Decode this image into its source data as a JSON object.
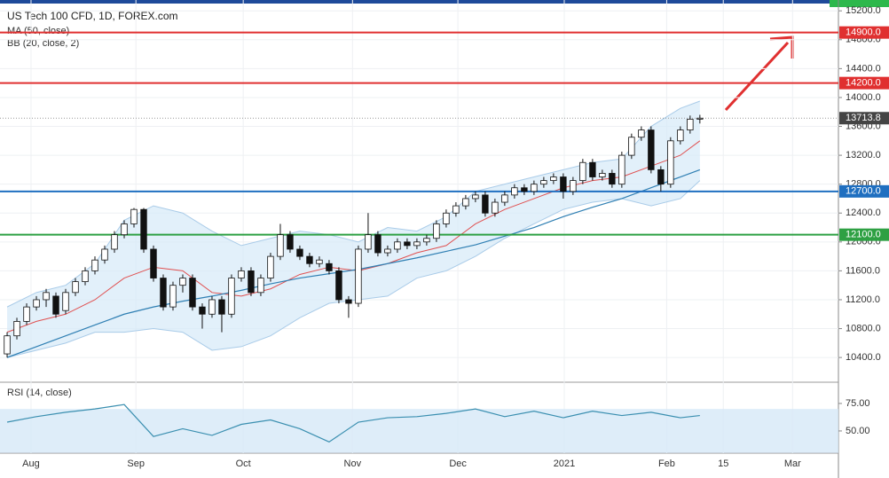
{
  "chart_data": {
    "type": "candlestick",
    "title": "US Tech 100 CFD, 1D, FOREX.com",
    "xlim": [
      -0.73,
      85.2
    ],
    "xticks": [
      {
        "value": 2.45,
        "label": "Aug"
      },
      {
        "value": 13.2,
        "label": "Sep"
      },
      {
        "value": 24.2,
        "label": "Oct"
      },
      {
        "value": 35.4,
        "label": "Nov"
      },
      {
        "value": 46.2,
        "label": "Dec"
      },
      {
        "value": 57.1,
        "label": "2021"
      },
      {
        "value": 67.6,
        "label": "Feb"
      },
      {
        "value": 73.4,
        "label": "15"
      },
      {
        "value": 80.5,
        "label": "Mar"
      }
    ],
    "ylim": [
      10070,
      15350
    ],
    "yticks": [
      {
        "value": 15200,
        "label": "15200.0"
      },
      {
        "value": 14800,
        "label": "14800.0"
      },
      {
        "value": 14400,
        "label": "14400.0"
      },
      {
        "value": 14000,
        "label": "14000.0"
      },
      {
        "value": 13600,
        "label": "13600.0"
      },
      {
        "value": 13200,
        "label": "13200.0"
      },
      {
        "value": 12800,
        "label": "12800.0"
      },
      {
        "value": 12400,
        "label": "12400.0"
      },
      {
        "value": 12000,
        "label": "12000.0"
      },
      {
        "value": 11600,
        "label": "11600.0"
      },
      {
        "value": 11200,
        "label": "11200.0"
      },
      {
        "value": 10800,
        "label": "10800.0"
      },
      {
        "value": 10400,
        "label": "10400.0"
      }
    ],
    "up_color": "#ffffff",
    "down_color": "#111111",
    "candles": [
      [
        10450,
        10750,
        10400,
        10700
      ],
      [
        10700,
        10950,
        10650,
        10900
      ],
      [
        10900,
        11150,
        10850,
        11100
      ],
      [
        11100,
        11250,
        11050,
        11200
      ],
      [
        11200,
        11350,
        11100,
        11300
      ],
      [
        11250,
        11300,
        10950,
        11000
      ],
      [
        11050,
        11350,
        11000,
        11300
      ],
      [
        11300,
        11500,
        11250,
        11450
      ],
      [
        11450,
        11650,
        11400,
        11600
      ],
      [
        11600,
        11800,
        11550,
        11750
      ],
      [
        11750,
        11950,
        11700,
        11900
      ],
      [
        11900,
        12150,
        11850,
        12100
      ],
      [
        12100,
        12300,
        12050,
        12250
      ],
      [
        12250,
        12470,
        12200,
        12450
      ],
      [
        12450,
        12470,
        11850,
        11900
      ],
      [
        11900,
        11950,
        11450,
        11500
      ],
      [
        11500,
        11550,
        11050,
        11100
      ],
      [
        11100,
        11450,
        11050,
        11400
      ],
      [
        11400,
        11550,
        11300,
        11500
      ],
      [
        11500,
        11550,
        11050,
        11100
      ],
      [
        11100,
        11150,
        10800,
        11000
      ],
      [
        11000,
        11250,
        10950,
        11200
      ],
      [
        11200,
        11250,
        10750,
        11000
      ],
      [
        11000,
        11550,
        10950,
        11500
      ],
      [
        11500,
        11650,
        11450,
        11600
      ],
      [
        11600,
        11650,
        11250,
        11300
      ],
      [
        11300,
        11550,
        11250,
        11500
      ],
      [
        11500,
        11850,
        11450,
        11800
      ],
      [
        11800,
        12250,
        11750,
        12100
      ],
      [
        12100,
        12150,
        11850,
        11900
      ],
      [
        11900,
        11950,
        11750,
        11800
      ],
      [
        11800,
        11850,
        11650,
        11700
      ],
      [
        11700,
        11800,
        11650,
        11750
      ],
      [
        11700,
        11750,
        11550,
        11600
      ],
      [
        11600,
        11650,
        11150,
        11200
      ],
      [
        11200,
        11250,
        10950,
        11150
      ],
      [
        11150,
        11950,
        11100,
        11900
      ],
      [
        11900,
        12400,
        11850,
        12100
      ],
      [
        12100,
        12150,
        11800,
        11850
      ],
      [
        11850,
        11950,
        11800,
        11900
      ],
      [
        11900,
        12050,
        11850,
        12000
      ],
      [
        12000,
        12050,
        11900,
        11950
      ],
      [
        11950,
        12050,
        11900,
        12000
      ],
      [
        12000,
        12100,
        11950,
        12050
      ],
      [
        12050,
        12300,
        12000,
        12250
      ],
      [
        12250,
        12450,
        12200,
        12400
      ],
      [
        12400,
        12550,
        12350,
        12500
      ],
      [
        12500,
        12650,
        12450,
        12600
      ],
      [
        12600,
        12700,
        12550,
        12650
      ],
      [
        12650,
        12700,
        12350,
        12400
      ],
      [
        12400,
        12600,
        12350,
        12550
      ],
      [
        12550,
        12700,
        12500,
        12650
      ],
      [
        12650,
        12800,
        12600,
        12750
      ],
      [
        12750,
        12800,
        12650,
        12700
      ],
      [
        12700,
        12850,
        12650,
        12800
      ],
      [
        12800,
        12900,
        12750,
        12850
      ],
      [
        12850,
        12950,
        12800,
        12900
      ],
      [
        12900,
        12950,
        12600,
        12700
      ],
      [
        12700,
        12900,
        12650,
        12850
      ],
      [
        12850,
        13150,
        12800,
        13100
      ],
      [
        13100,
        13150,
        12850,
        12900
      ],
      [
        12900,
        13000,
        12850,
        12950
      ],
      [
        12950,
        13000,
        12750,
        12800
      ],
      [
        12800,
        13250,
        12750,
        13200
      ],
      [
        13200,
        13500,
        13150,
        13450
      ],
      [
        13450,
        13600,
        13400,
        13550
      ],
      [
        13550,
        13600,
        12950,
        13000
      ],
      [
        13000,
        13050,
        12700,
        12800
      ],
      [
        12800,
        13450,
        12750,
        13400
      ],
      [
        13400,
        13600,
        13350,
        13550
      ],
      [
        13550,
        13750,
        13500,
        13700
      ],
      [
        13700,
        13760,
        13640,
        13714
      ]
    ],
    "indicators": [
      {
        "label": "MA (50, close)",
        "color": "#2f7fb3"
      },
      {
        "label": "BB (20, close, 2)",
        "color": "#e05050",
        "band_color": "#d6e9f8"
      }
    ],
    "line_x": [
      0,
      3,
      6,
      9,
      12,
      15,
      18,
      21,
      24,
      27,
      30,
      33,
      36,
      39,
      42,
      45,
      48,
      51,
      54,
      57,
      60,
      63,
      66,
      69,
      71
    ],
    "ma": [
      10400,
      10550,
      10700,
      10850,
      11000,
      11100,
      11180,
      11250,
      11330,
      11420,
      11500,
      11560,
      11620,
      11700,
      11780,
      11870,
      11960,
      12080,
      12200,
      12350,
      12480,
      12600,
      12750,
      12900,
      13000
    ],
    "bb_mid": [
      10750,
      10900,
      11000,
      11200,
      11500,
      11650,
      11600,
      11300,
      11250,
      11350,
      11550,
      11650,
      11600,
      11700,
      11850,
      11950,
      12250,
      12450,
      12600,
      12750,
      12850,
      12900,
      13050,
      13200,
      13400
    ],
    "bb_upper": [
      11100,
      11300,
      11400,
      11700,
      12300,
      12500,
      12400,
      12150,
      11950,
      12050,
      12150,
      12100,
      12000,
      12200,
      12150,
      12350,
      12700,
      12800,
      12900,
      13000,
      13100,
      13150,
      13600,
      13850,
      13950
    ],
    "bb_lower": [
      10400,
      10500,
      10600,
      10750,
      10750,
      10800,
      10750,
      10500,
      10550,
      10700,
      10950,
      11150,
      11200,
      11250,
      11500,
      11600,
      11800,
      12050,
      12250,
      12450,
      12550,
      12600,
      12500,
      12600,
      12850
    ],
    "levels": [
      {
        "value": 14900,
        "label": "14900.0",
        "color": "#e03030"
      },
      {
        "value": 14200,
        "label": "14200.0",
        "color": "#e03030"
      },
      {
        "value": 12700,
        "label": "12700.0",
        "color": "#1f6fc0"
      },
      {
        "value": 12100,
        "label": "12100.0",
        "color": "#2ea043"
      }
    ],
    "last": {
      "value": 13713.8,
      "label": "13713.8"
    },
    "rsi": {
      "label": "RSI (14, close)",
      "ylim": [
        30.6,
        93.5
      ],
      "yticks": [
        {
          "value": 75,
          "label": "75.00"
        },
        {
          "value": 50,
          "label": "50.00"
        }
      ],
      "band": [
        30,
        70
      ],
      "color": "#3a8fb0",
      "values": [
        58,
        63,
        67,
        70,
        74,
        45,
        52,
        46,
        56,
        60,
        52,
        40,
        58,
        62,
        63,
        66,
        70,
        63,
        68,
        62,
        68,
        64,
        67,
        62,
        64
      ]
    }
  }
}
